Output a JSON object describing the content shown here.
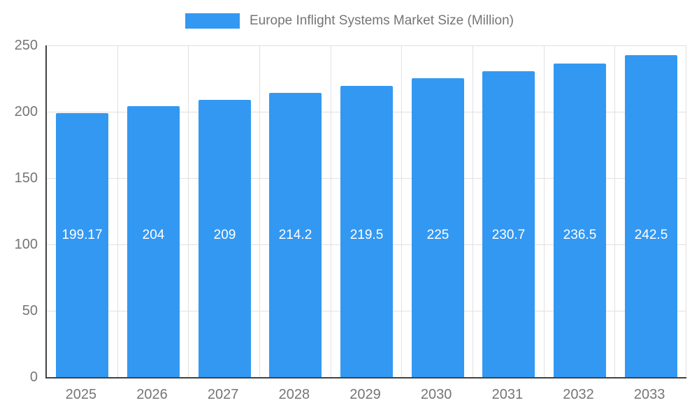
{
  "legend": {
    "label": "Europe Inflight Systems Market Size (Million)"
  },
  "chart_data": {
    "type": "bar",
    "title": "Europe Inflight Systems Market Size (Million)",
    "categories": [
      "2025",
      "2026",
      "2027",
      "2028",
      "2029",
      "2030",
      "2031",
      "2032",
      "2033"
    ],
    "values": [
      199.17,
      204,
      209,
      214.2,
      219.5,
      225,
      230.7,
      236.5,
      242.5
    ],
    "value_labels": [
      "199.17",
      "204",
      "209",
      "214.2",
      "219.5",
      "225",
      "230.7",
      "236.5",
      "242.5"
    ],
    "xlabel": "",
    "ylabel": "",
    "ylim": [
      0,
      250
    ],
    "yticks": [
      0,
      50,
      100,
      150,
      200,
      250
    ],
    "grid": true,
    "legend_position": "top",
    "bar_color": "#3398f2",
    "axis_color": "#424242",
    "gridline_color": "#e0e0e0",
    "tick_label_color": "#757575",
    "bar_value_label_color": "#ffffff"
  }
}
